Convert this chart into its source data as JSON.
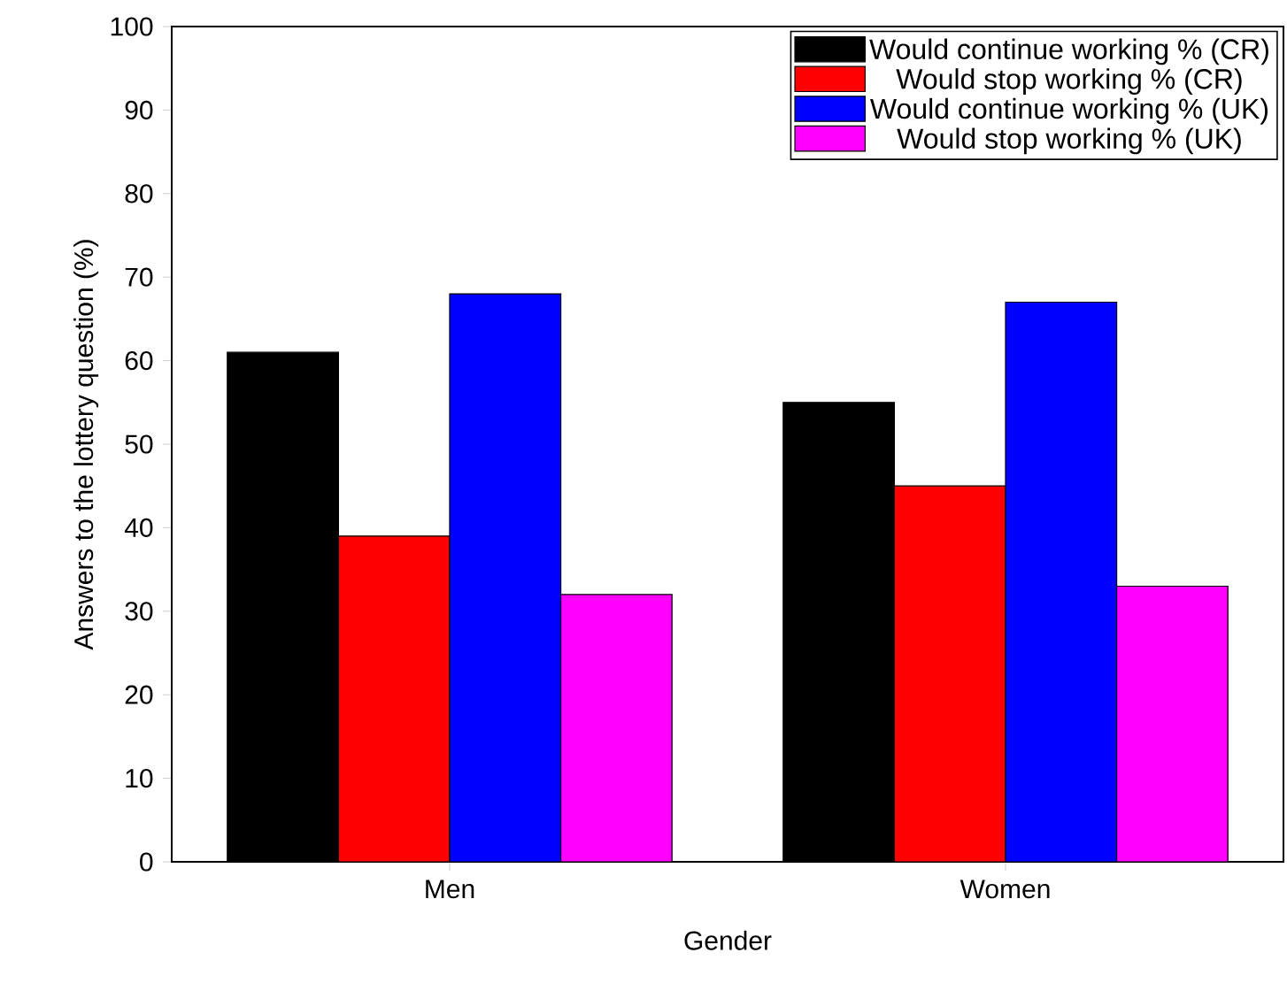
{
  "chart_data": {
    "type": "bar",
    "xlabel": "Gender",
    "ylabel": "Answers to the lottery question (%)",
    "categories": [
      "Men",
      "Women"
    ],
    "series": [
      {
        "name": "Would continue working % (CR)",
        "color": "#000000",
        "values": [
          61,
          55
        ]
      },
      {
        "name": "Would stop working % (CR)",
        "color": "#ff0000",
        "values": [
          39,
          45
        ]
      },
      {
        "name": "Would continue working % (UK)",
        "color": "#0000ff",
        "values": [
          68,
          67
        ]
      },
      {
        "name": "Would stop working % (UK)",
        "color": "#ff00ff",
        "values": [
          32,
          33
        ]
      }
    ],
    "ylim": [
      0,
      100
    ],
    "yticks": [
      0,
      10,
      20,
      30,
      40,
      50,
      60,
      70,
      80,
      90,
      100
    ],
    "grid": false,
    "legend": "top right"
  }
}
